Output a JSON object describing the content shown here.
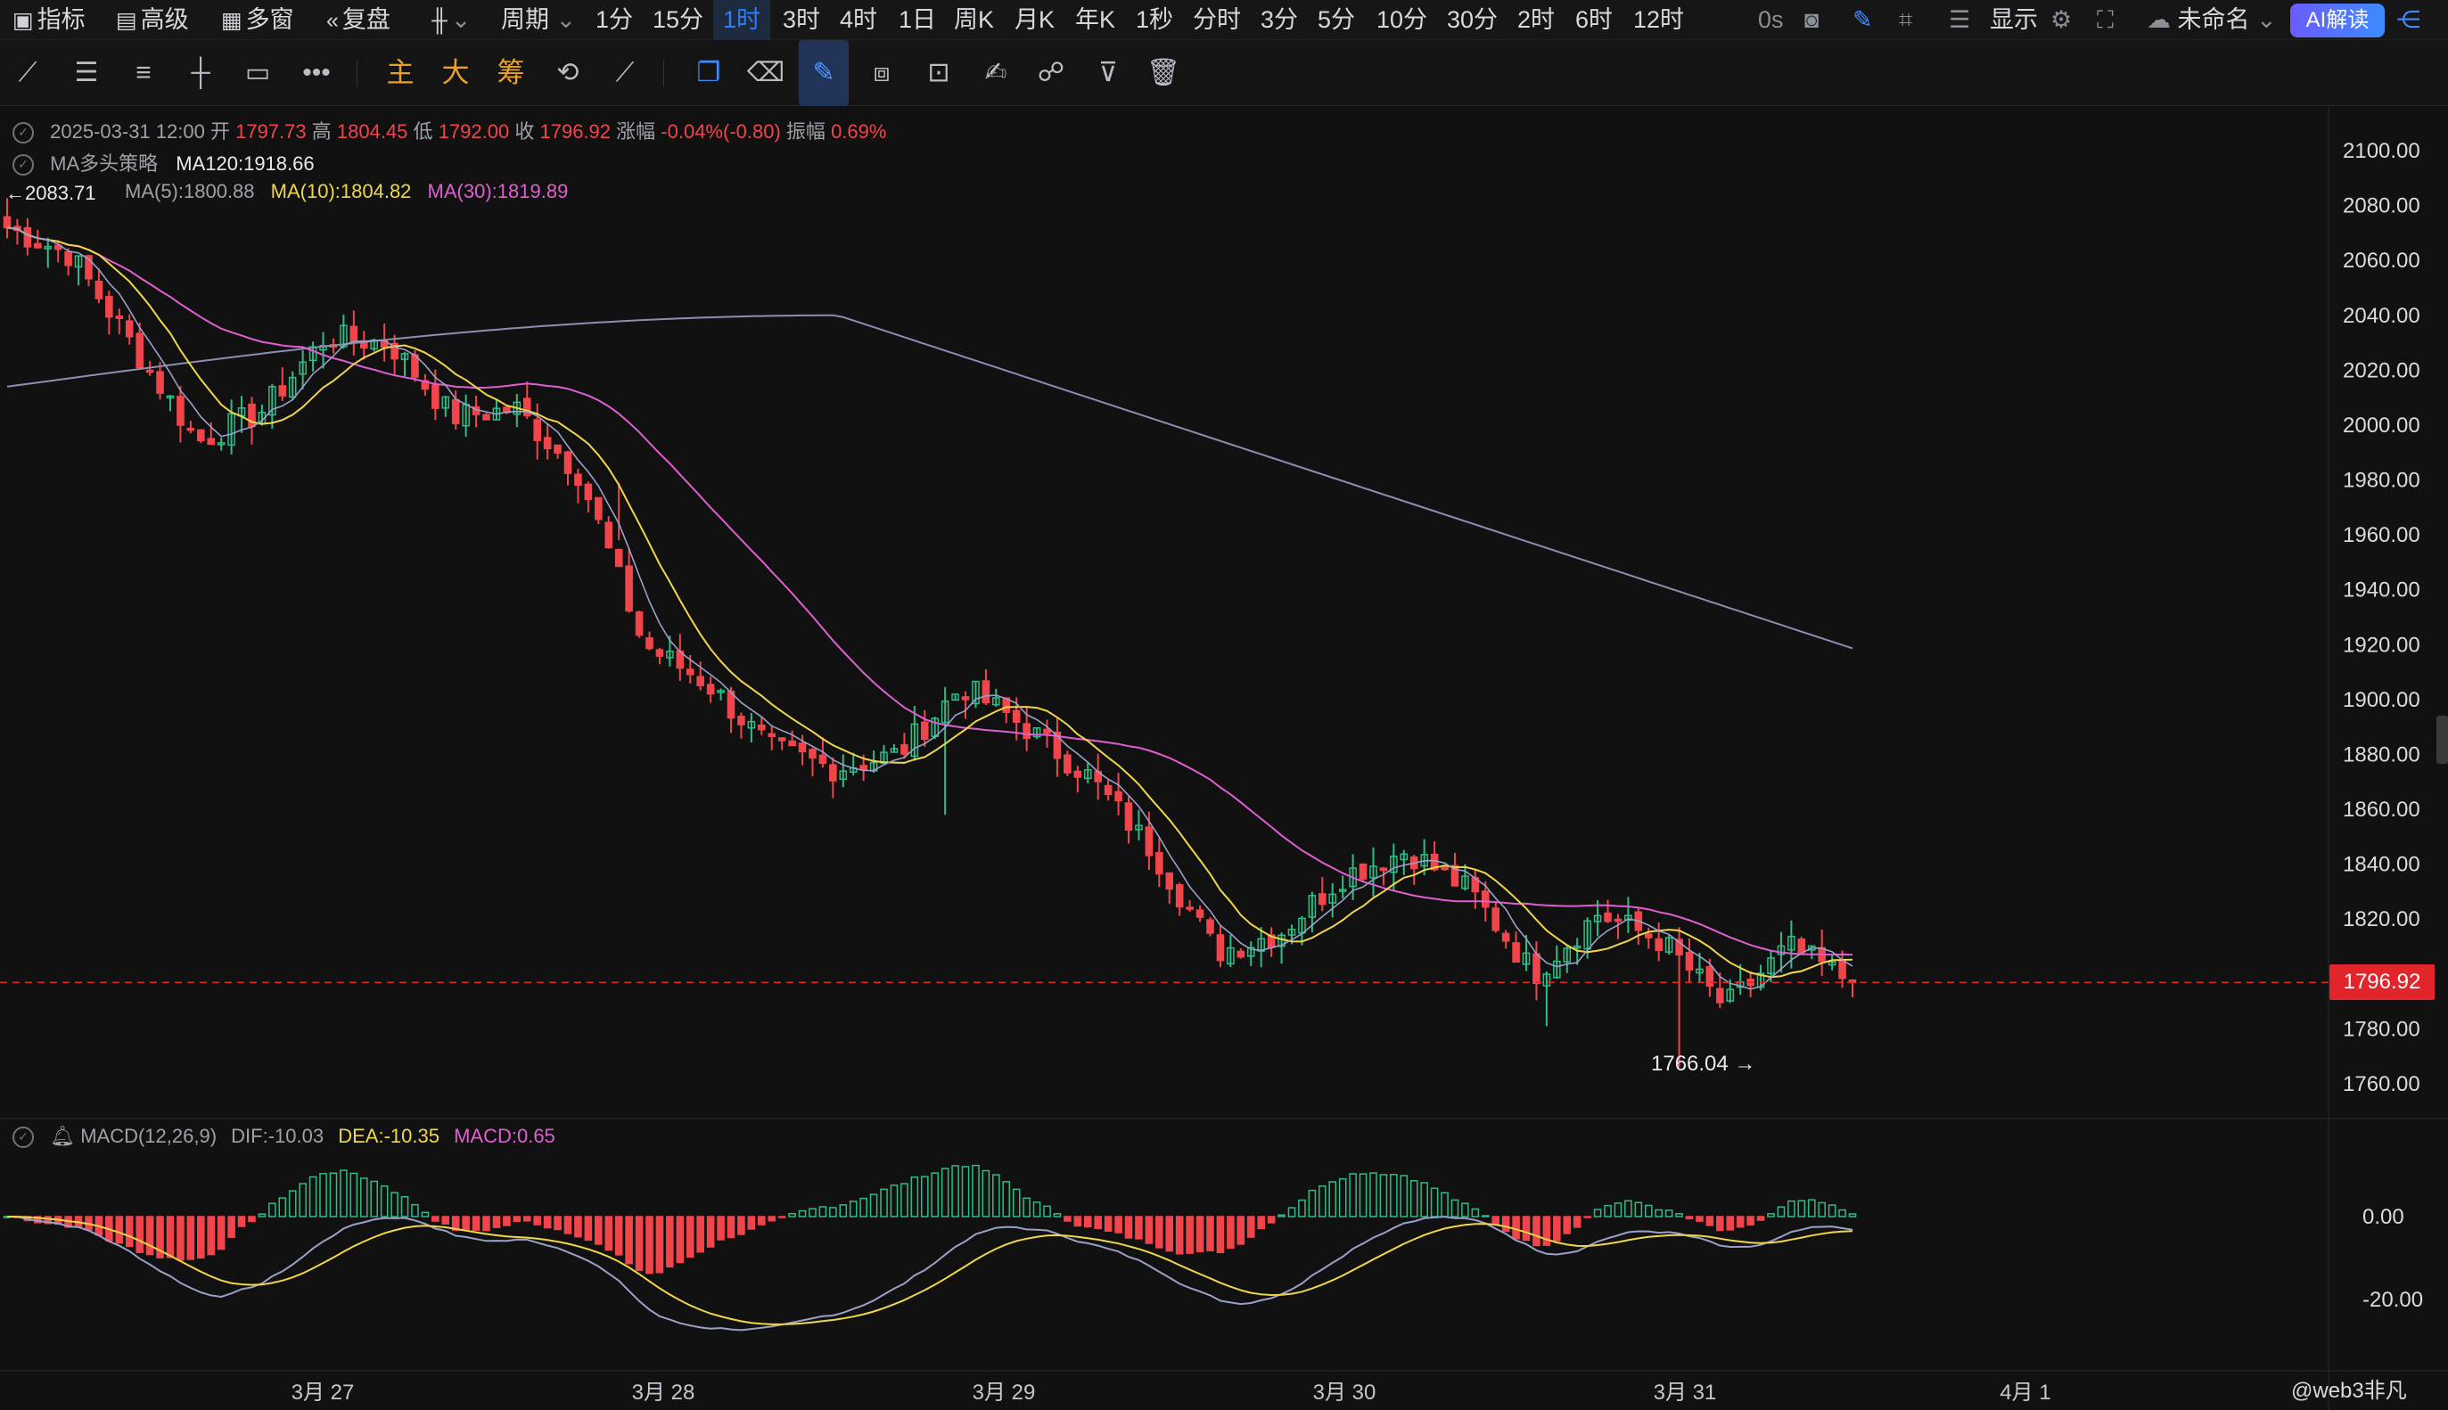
{
  "toolbar": {
    "indicators": "指标",
    "advanced": "高级",
    "multi_window": "多窗",
    "replay": "复盘",
    "chart_type_icon": "candlestick-icon",
    "period": "周期",
    "periods": [
      "1分",
      "15分",
      "1时",
      "3时",
      "4时",
      "1日",
      "周K",
      "月K",
      "年K",
      "1秒",
      "分时",
      "3分",
      "5分",
      "10分",
      "30分",
      "2时",
      "6时",
      "12时"
    ],
    "active_period": "1时",
    "countdown": "0s",
    "display": "显示",
    "layout_name": "未命名",
    "ai_button": "AI解读"
  },
  "drawbar": {
    "main": "主",
    "big": "大",
    "chip": "筹"
  },
  "info": {
    "datetime": "2025-03-31 12:00",
    "open_label": "开",
    "open": "1797.73",
    "high_label": "高",
    "high": "1804.45",
    "low_label": "低",
    "low": "1792.00",
    "close_label": "收",
    "close": "1796.92",
    "change_label": "涨幅",
    "change": "-0.04%(-0.80)",
    "amplitude_label": "振幅",
    "amplitude": "0.69%",
    "strategy_name": "MA多头策略",
    "ma120": "MA120:1918.66",
    "ma_prefix": "←2083.71",
    "ma5": "MA(5):1800.88",
    "ma10": "MA(10):1804.82",
    "ma30": "MA(30):1819.89",
    "macd_name": "MACD(12,26,9)",
    "dif": "DIF:-10.03",
    "dea": "DEA:-10.35",
    "macd": "MACD:0.65"
  },
  "price_axis": {
    "ticks": [
      "2100.00",
      "2080.00",
      "2060.00",
      "2040.00",
      "2020.00",
      "2000.00",
      "1980.00",
      "1960.00",
      "1940.00",
      "1920.00",
      "1900.00",
      "1880.00",
      "1860.00",
      "1840.00",
      "1820.00",
      "1780.00",
      "1760.00"
    ],
    "current_price": "1796.92",
    "low_marker": "1766.04 →"
  },
  "macd_axis": {
    "ticks": [
      "0.00",
      "-20.00"
    ]
  },
  "date_axis": {
    "labels": [
      "3月 27",
      "3月 28",
      "3月 29",
      "3月 30",
      "3月 31",
      "4月 1"
    ]
  },
  "watermark": "@web3非凡",
  "colors": {
    "up": "#2ebd85",
    "down": "#f0454a",
    "ma5": "#9aa0c8",
    "ma10": "#f0d64a",
    "ma30": "#e05fd0",
    "ma120": "#8c8fb0"
  },
  "chart_data": {
    "type": "candlestick",
    "symbol_interval": "1时",
    "y_range": [
      1755,
      2110
    ],
    "ohlc_close_path_anchors": [
      {
        "x": "3月 27 00:00",
        "y": 2072
      },
      {
        "x": "3月 27 07:00",
        "y": 2062
      },
      {
        "x": "3月 27 08:00",
        "y": 2028
      },
      {
        "x": "3月 27 12:00",
        "y": 1994
      },
      {
        "x": "3月 27 17:00",
        "y": 2005
      },
      {
        "x": "3月 27 22:00",
        "y": 2032
      },
      {
        "x": "3月 28 03:00",
        "y": 2030
      },
      {
        "x": "3月 28 08:00",
        "y": 2003
      },
      {
        "x": "3月 28 14:00",
        "y": 2006
      },
      {
        "x": "3月 28 15:00",
        "y": 1982
      },
      {
        "x": "3月 28 18:00",
        "y": 1920
      },
      {
        "x": "3月 28 22:00",
        "y": 1906
      },
      {
        "x": "3月 29 02:00",
        "y": 1882
      },
      {
        "x": "3月 29 06:00",
        "y": 1875
      },
      {
        "x": "3月 29 10:00",
        "y": 1880
      },
      {
        "x": "3月 29 14:00",
        "y": 1905
      },
      {
        "x": "3月 29 18:00",
        "y": 1890
      },
      {
        "x": "3月 29 22:00",
        "y": 1872
      },
      {
        "x": "3月 30 02:00",
        "y": 1845
      },
      {
        "x": "3月 30 04:00",
        "y": 1808
      },
      {
        "x": "3月 30 09:00",
        "y": 1815
      },
      {
        "x": "3月 30 14:00",
        "y": 1836
      },
      {
        "x": "3月 30 19:00",
        "y": 1845
      },
      {
        "x": "3月 30 22:00",
        "y": 1830
      },
      {
        "x": "3月 31 00:00",
        "y": 1800
      },
      {
        "x": "3月 31 03:00",
        "y": 1822
      },
      {
        "x": "3月 31 06:00",
        "y": 1812
      },
      {
        "x": "3月 31 08:00",
        "y": 1788
      },
      {
        "x": "3月 31 10:00",
        "y": 1810
      },
      {
        "x": "3月 31 12:00",
        "y": 1796.92
      }
    ],
    "lows": [
      {
        "x": "3月 31 07:00",
        "y": 1766.04
      }
    ],
    "series": [
      {
        "name": "MA(5)",
        "last": 1800.88
      },
      {
        "name": "MA(10)",
        "last": 1804.82
      },
      {
        "name": "MA(30)",
        "last": 1819.89
      },
      {
        "name": "MA120",
        "last": 1918.66
      }
    ],
    "macd": {
      "dif": -10.03,
      "dea": -10.35,
      "hist": 0.65,
      "y_range": [
        -35,
        15
      ]
    }
  }
}
